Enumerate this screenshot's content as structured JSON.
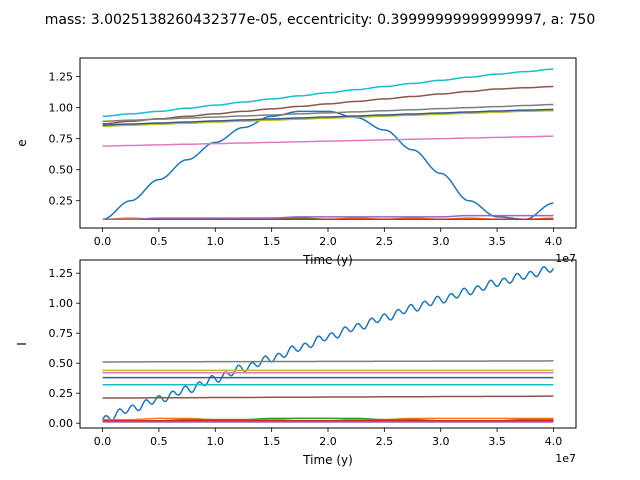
{
  "figure_title": "mass: 3.0025138260432377e-05, eccentricity: 0.39999999999999997, a: 750",
  "chart_data": [
    {
      "type": "line",
      "xlabel": "Time (y)",
      "ylabel": "e",
      "x_offset_label": "1e7",
      "xlim": [
        -2000000,
        42000000
      ],
      "ylim": [
        0.03,
        1.4
      ],
      "xticks": [
        0,
        5000000,
        10000000,
        15000000,
        20000000,
        25000000,
        30000000,
        35000000,
        40000000
      ],
      "xtick_labels": [
        "0.0",
        "0.5",
        "1.0",
        "1.5",
        "2.0",
        "2.5",
        "3.0",
        "3.5",
        "4.0"
      ],
      "yticks": [
        0.25,
        0.5,
        0.75,
        1.0,
        1.25
      ],
      "ytick_labels": [
        "0.25",
        "0.50",
        "0.75",
        "1.00",
        "1.25"
      ],
      "x": [
        0,
        2500000,
        5000000,
        7500000,
        10000000,
        12500000,
        15000000,
        17500000,
        20000000,
        22500000,
        25000000,
        27500000,
        30000000,
        32500000,
        35000000,
        37500000,
        40000000
      ],
      "series": [
        {
          "color": "#1f77b4",
          "values": [
            0.1,
            0.25,
            0.42,
            0.58,
            0.72,
            0.84,
            0.93,
            0.97,
            0.97,
            0.92,
            0.82,
            0.66,
            0.47,
            0.25,
            0.12,
            0.1,
            0.23
          ]
        },
        {
          "color": "#ff7f0e",
          "values": [
            0.1,
            0.11,
            0.1,
            0.1,
            0.11,
            0.1,
            0.11,
            0.1,
            0.1,
            0.11,
            0.1,
            0.11,
            0.1,
            0.11,
            0.1,
            0.1,
            0.11
          ]
        },
        {
          "color": "#2ca02c",
          "values": [
            0.1,
            0.1,
            0.1,
            0.1,
            0.1,
            0.11,
            0.11,
            0.11,
            0.1,
            0.1,
            0.1,
            0.1,
            0.1,
            0.1,
            0.1,
            0.1,
            0.1
          ]
        },
        {
          "color": "#d62728",
          "values": [
            0.1,
            0.1,
            0.1,
            0.1,
            0.1,
            0.1,
            0.1,
            0.1,
            0.1,
            0.1,
            0.1,
            0.1,
            0.1,
            0.1,
            0.1,
            0.1,
            0.1
          ]
        },
        {
          "color": "#9467bd",
          "values": [
            0.1,
            0.1,
            0.11,
            0.11,
            0.11,
            0.11,
            0.11,
            0.12,
            0.12,
            0.12,
            0.12,
            0.12,
            0.12,
            0.13,
            0.13,
            0.13,
            0.13
          ]
        },
        {
          "color": "#8c564b",
          "values": [
            0.87,
            0.89,
            0.91,
            0.93,
            0.95,
            0.97,
            0.99,
            1.01,
            1.03,
            1.05,
            1.07,
            1.09,
            1.11,
            1.13,
            1.15,
            1.16,
            1.17
          ]
        },
        {
          "color": "#e377c2",
          "values": [
            0.69,
            0.695,
            0.7,
            0.705,
            0.71,
            0.715,
            0.72,
            0.725,
            0.73,
            0.735,
            0.74,
            0.745,
            0.75,
            0.755,
            0.76,
            0.765,
            0.77
          ]
        },
        {
          "color": "#7f7f7f",
          "values": [
            0.89,
            0.899,
            0.907,
            0.916,
            0.924,
            0.933,
            0.941,
            0.95,
            0.958,
            0.966,
            0.975,
            0.983,
            0.992,
            1.0,
            1.008,
            1.017,
            1.025
          ]
        },
        {
          "color": "#bcbd22",
          "values": [
            0.85,
            0.858,
            0.866,
            0.874,
            0.883,
            0.891,
            0.899,
            0.907,
            0.915,
            0.923,
            0.931,
            0.939,
            0.947,
            0.955,
            0.963,
            0.971,
            0.975
          ]
        },
        {
          "color": "#17becf",
          "values": [
            0.93,
            0.95,
            0.97,
            0.995,
            1.02,
            1.045,
            1.07,
            1.095,
            1.12,
            1.145,
            1.17,
            1.195,
            1.22,
            1.245,
            1.27,
            1.29,
            1.31
          ]
        },
        {
          "color": "#3a5a8f",
          "values": [
            0.86,
            0.868,
            0.876,
            0.884,
            0.893,
            0.901,
            0.909,
            0.917,
            0.925,
            0.933,
            0.941,
            0.949,
            0.957,
            0.965,
            0.973,
            0.98,
            0.985
          ]
        }
      ]
    },
    {
      "type": "line",
      "xlabel": "Time (y)",
      "ylabel": "I",
      "x_offset_label": "1e7",
      "xlim": [
        -2000000,
        42000000
      ],
      "ylim": [
        -0.04,
        1.36
      ],
      "xticks": [
        0,
        5000000,
        10000000,
        15000000,
        20000000,
        25000000,
        30000000,
        35000000,
        40000000
      ],
      "xtick_labels": [
        "0.0",
        "0.5",
        "1.0",
        "1.5",
        "2.0",
        "2.5",
        "3.0",
        "3.5",
        "4.0"
      ],
      "yticks": [
        0.0,
        0.25,
        0.5,
        0.75,
        1.0,
        1.25
      ],
      "ytick_labels": [
        "0.00",
        "0.25",
        "0.50",
        "0.75",
        "1.00",
        "1.25"
      ],
      "x": [
        0,
        2500000,
        5000000,
        7500000,
        10000000,
        12500000,
        15000000,
        17500000,
        20000000,
        22500000,
        25000000,
        27500000,
        30000000,
        32500000,
        35000000,
        37500000,
        40000000
      ],
      "series": [
        {
          "color": "#1f77b4",
          "values": [
            0.03,
            0.12,
            0.2,
            0.28,
            0.37,
            0.46,
            0.54,
            0.63,
            0.72,
            0.8,
            0.88,
            0.96,
            1.03,
            1.1,
            1.17,
            1.23,
            1.29
          ],
          "wobble": 0.03
        },
        {
          "color": "#ff7f0e",
          "values": [
            0.03,
            0.03,
            0.04,
            0.04,
            0.03,
            0.03,
            0.03,
            0.04,
            0.04,
            0.03,
            0.03,
            0.04,
            0.04,
            0.04,
            0.04,
            0.04,
            0.04
          ]
        },
        {
          "color": "#2ca02c",
          "values": [
            0.02,
            0.02,
            0.02,
            0.03,
            0.03,
            0.03,
            0.04,
            0.04,
            0.04,
            0.04,
            0.03,
            0.03,
            0.02,
            0.02,
            0.02,
            0.03,
            0.03
          ]
        },
        {
          "color": "#d62728",
          "values": [
            0.02,
            0.02,
            0.02,
            0.02,
            0.02,
            0.02,
            0.02,
            0.02,
            0.02,
            0.02,
            0.02,
            0.02,
            0.02,
            0.02,
            0.02,
            0.02,
            0.02
          ]
        },
        {
          "color": "#9467bd",
          "values": [
            0.01,
            0.01,
            0.01,
            0.01,
            0.01,
            0.01,
            0.01,
            0.01,
            0.01,
            0.01,
            0.01,
            0.01,
            0.01,
            0.01,
            0.01,
            0.01,
            0.01
          ]
        },
        {
          "color": "#8c564b",
          "values": [
            0.21,
            0.21,
            0.212,
            0.212,
            0.214,
            0.214,
            0.216,
            0.216,
            0.218,
            0.218,
            0.22,
            0.22,
            0.222,
            0.222,
            0.224,
            0.224,
            0.226
          ]
        },
        {
          "color": "#e377c2",
          "values": [
            0.42,
            0.42,
            0.42,
            0.42,
            0.42,
            0.42,
            0.42,
            0.42,
            0.42,
            0.42,
            0.42,
            0.42,
            0.42,
            0.42,
            0.42,
            0.42,
            0.42
          ]
        },
        {
          "color": "#7f7f7f",
          "values": [
            0.51,
            0.511,
            0.512,
            0.512,
            0.513,
            0.513,
            0.514,
            0.514,
            0.515,
            0.515,
            0.516,
            0.516,
            0.517,
            0.517,
            0.518,
            0.518,
            0.519
          ]
        },
        {
          "color": "#bcbd22",
          "values": [
            0.44,
            0.44,
            0.44,
            0.44,
            0.44,
            0.44,
            0.44,
            0.44,
            0.44,
            0.44,
            0.44,
            0.44,
            0.44,
            0.44,
            0.44,
            0.44,
            0.44
          ]
        },
        {
          "color": "#17becf",
          "values": [
            0.32,
            0.32,
            0.32,
            0.32,
            0.32,
            0.32,
            0.32,
            0.32,
            0.32,
            0.32,
            0.32,
            0.32,
            0.32,
            0.32,
            0.32,
            0.32,
            0.32
          ]
        },
        {
          "color": "#3a5a8f",
          "values": [
            0.38,
            0.38,
            0.38,
            0.38,
            0.38,
            0.38,
            0.38,
            0.38,
            0.38,
            0.38,
            0.38,
            0.38,
            0.38,
            0.38,
            0.38,
            0.38,
            0.38
          ]
        }
      ]
    }
  ]
}
